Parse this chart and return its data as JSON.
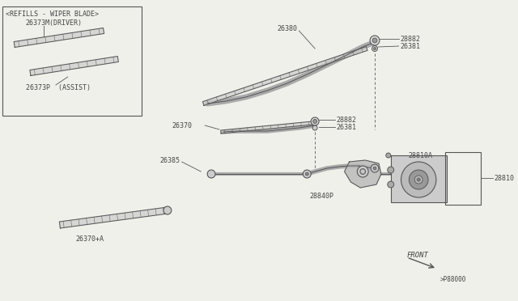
{
  "bg_color": "#f0f0eb",
  "line_color": "#555555",
  "text_color": "#444444",
  "parts": {
    "26373M": "26373M(DRIVER)",
    "26373P": "26373P  (ASSIST)",
    "26380": "26380",
    "26370": "26370",
    "26385": "26385",
    "26370A": "26370+A",
    "28882_top": "28882",
    "26381_top": "26381",
    "28882_mid": "28882",
    "26381_mid": "26381",
    "28840P": "28840P",
    "28810A": "28810A",
    "28810": "28810",
    "P88000": ">P88000"
  },
  "refills_label": "<REFILLS - WIPER BLADE>",
  "front_label": "FRONT"
}
